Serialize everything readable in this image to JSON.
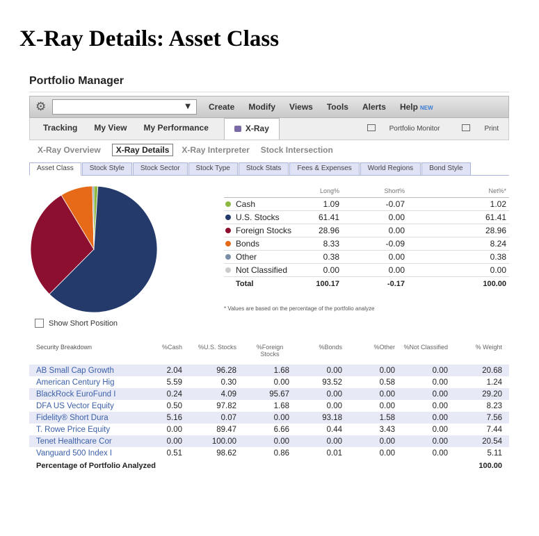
{
  "heading": "X-Ray Details: Asset Class",
  "app": {
    "title": "Portfolio Manager"
  },
  "menubar": {
    "select_value": "",
    "items": [
      "Create",
      "Modify",
      "Views",
      "Tools",
      "Alerts",
      "Help"
    ],
    "new_badge": "NEW"
  },
  "tabs": {
    "items": [
      "Tracking",
      "My View",
      "My Performance"
    ],
    "active": "X-Ray",
    "portfolio_monitor": "Portfolio Monitor",
    "print": "Print"
  },
  "subnav": [
    "X-Ray Overview",
    "X-Ray Details",
    "X-Ray Interpreter",
    "Stock Intersection"
  ],
  "subtabs": [
    "Asset Class",
    "Stock Style",
    "Stock Sector",
    "Stock Type",
    "Stock Stats",
    "Fees & Expenses",
    "World Regions",
    "Bond Style"
  ],
  "allocation": {
    "headers": {
      "long": "Long%",
      "short": "Short%",
      "net": "Net%*"
    },
    "rows": [
      {
        "name": "Cash",
        "color": "#8db843",
        "long": "1.09",
        "short": "-0.07",
        "net": "1.02"
      },
      {
        "name": "U.S. Stocks",
        "color": "#243a6b",
        "long": "61.41",
        "short": "0.00",
        "net": "61.41"
      },
      {
        "name": "Foreign Stocks",
        "color": "#8c0f30",
        "long": "28.96",
        "short": "0.00",
        "net": "28.96"
      },
      {
        "name": "Bonds",
        "color": "#e66a17",
        "long": "8.33",
        "short": "-0.09",
        "net": "8.24"
      },
      {
        "name": "Other",
        "color": "#7c8fa8",
        "long": "0.38",
        "short": "0.00",
        "net": "0.38"
      },
      {
        "name": "Not Classified",
        "color": "#cccccc",
        "long": "0.00",
        "short": "0.00",
        "net": "0.00"
      }
    ],
    "total": {
      "name": "Total",
      "long": "100.17",
      "short": "-0.17",
      "net": "100.00"
    },
    "note": "* Values are based on the percentage of the portfolio analyze"
  },
  "show_short": "Show Short Position",
  "breakdown": {
    "headers": [
      "Security Breakdown",
      "%Cash",
      "%U.S. Stocks",
      "%Foreign Stocks",
      "%Bonds",
      "%Other",
      "%Not Classified",
      "% Weight"
    ],
    "rows": [
      [
        "AB Small Cap Growth",
        "2.04",
        "96.28",
        "1.68",
        "0.00",
        "0.00",
        "0.00",
        "20.68"
      ],
      [
        "American Century Hig",
        "5.59",
        "0.30",
        "0.00",
        "93.52",
        "0.58",
        "0.00",
        "1.24"
      ],
      [
        "BlackRock EuroFund I",
        "0.24",
        "4.09",
        "95.67",
        "0.00",
        "0.00",
        "0.00",
        "29.20"
      ],
      [
        "DFA US Vector Equity",
        "0.50",
        "97.82",
        "1.68",
        "0.00",
        "0.00",
        "0.00",
        "8.23"
      ],
      [
        "Fidelity® Short Dura",
        "5.16",
        "0.07",
        "0.00",
        "93.18",
        "1.58",
        "0.00",
        "7.56"
      ],
      [
        "T. Rowe Price Equity",
        "0.00",
        "89.47",
        "6.66",
        "0.44",
        "3.43",
        "0.00",
        "7.44"
      ],
      [
        "Tenet Healthcare Cor",
        "0.00",
        "100.00",
        "0.00",
        "0.00",
        "0.00",
        "0.00",
        "20.54"
      ],
      [
        "Vanguard 500 Index I",
        "0.51",
        "98.62",
        "0.86",
        "0.01",
        "0.00",
        "0.00",
        "5.11"
      ]
    ],
    "total_label": "Percentage of Portfolio Analyzed",
    "total_value": "100.00"
  }
}
